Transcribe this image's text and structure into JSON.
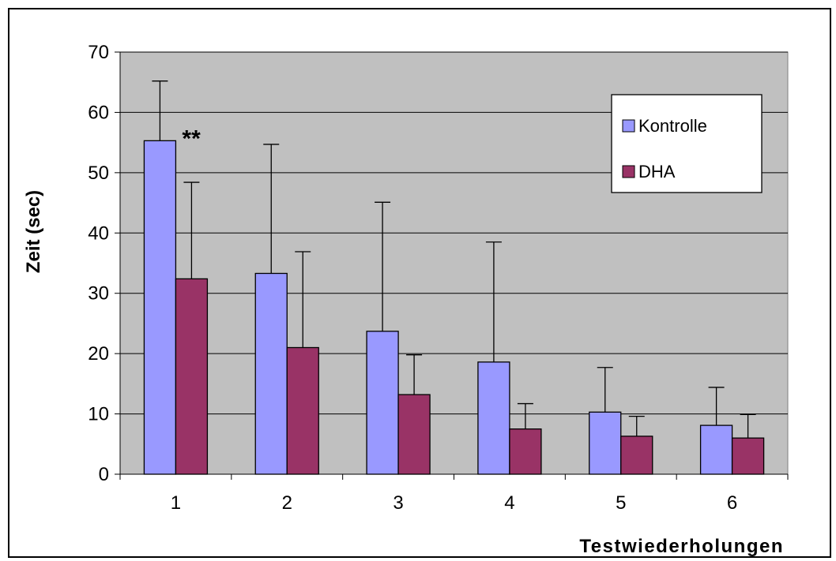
{
  "chart_data": {
    "type": "bar",
    "title": "",
    "xlabel": "Testwiederholungen",
    "ylabel": "Zeit (sec)",
    "categories": [
      "1",
      "2",
      "3",
      "4",
      "5",
      "6"
    ],
    "ylim": [
      0,
      70
    ],
    "yticks": [
      0,
      10,
      20,
      30,
      40,
      50,
      60,
      70
    ],
    "grid": true,
    "legend_position": "top-right",
    "series": [
      {
        "name": "Kontrolle",
        "color": "#9999ff",
        "values": [
          55.3,
          33.3,
          23.7,
          18.6,
          10.3,
          8.1
        ],
        "error_upper": [
          65.2,
          54.7,
          45.1,
          38.5,
          17.7,
          14.4
        ]
      },
      {
        "name": "DHA",
        "color": "#993366",
        "values": [
          32.4,
          21.0,
          13.2,
          7.5,
          6.3,
          6.0
        ],
        "error_upper": [
          48.4,
          36.9,
          19.8,
          11.7,
          9.6,
          9.9
        ]
      }
    ],
    "annotations": [
      {
        "text": "**",
        "category": "1",
        "y": 57
      }
    ],
    "plot_background": "#c0c0c0"
  }
}
